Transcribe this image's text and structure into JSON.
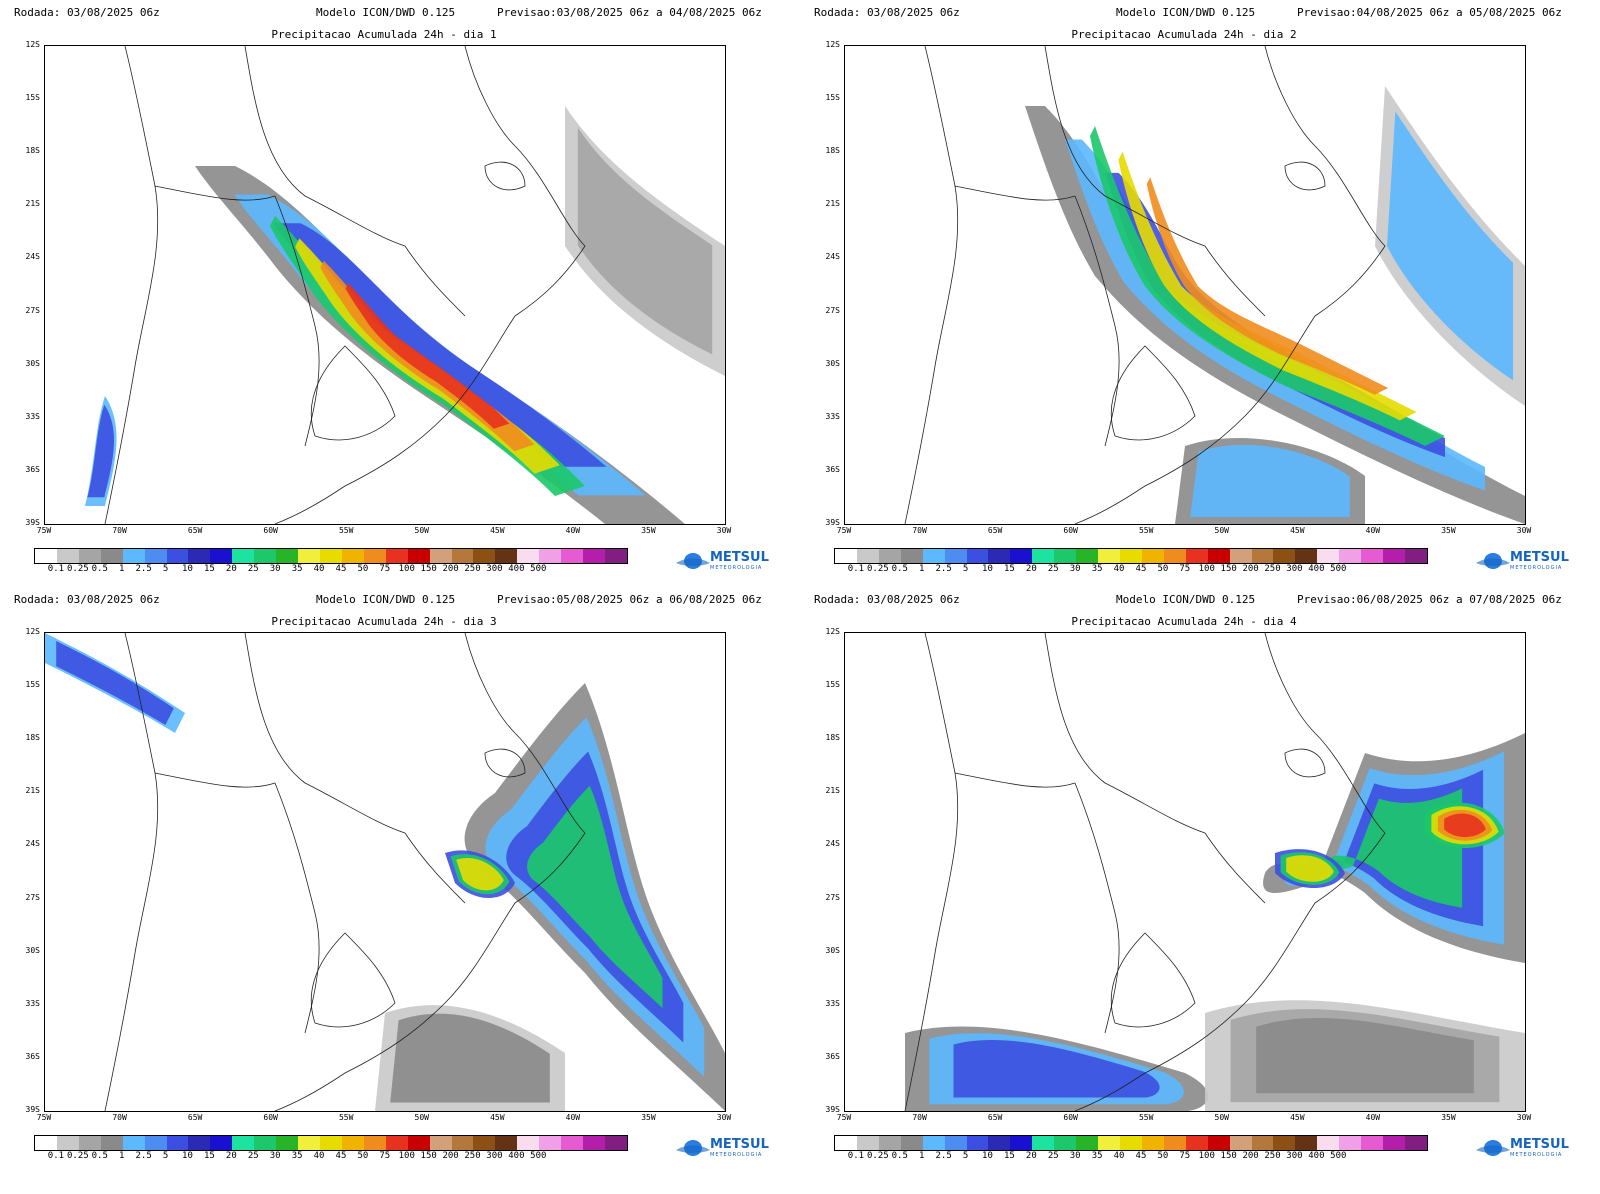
{
  "labels": {
    "rodada_key": "Rodada:",
    "previsao_key": "Previsao:"
  },
  "colors": {
    "scale": [
      "#ffffff",
      "#c9c9c9",
      "#a5a5a5",
      "#8a8a8a",
      "#5cb8ff",
      "#4d8cf0",
      "#3c4fe0",
      "#2a2ab4",
      "#1a10d0",
      "#1de3a0",
      "#1cc86a",
      "#28b428",
      "#f0f03c",
      "#e6dc00",
      "#f0b400",
      "#f08c1e",
      "#e6321e",
      "#c80000",
      "#d2a07a",
      "#b4783c",
      "#8c5014",
      "#643214",
      "#fadcf0",
      "#f0a0e6",
      "#e65ad2",
      "#b41eaa",
      "#821e82"
    ]
  },
  "colorbar_labels": [
    "0.1",
    "0.25",
    "0.5",
    "1",
    "2.5",
    "5",
    "10",
    "15",
    "20",
    "25",
    "30",
    "35",
    "40",
    "45",
    "50",
    "75",
    "100",
    "150",
    "200",
    "250",
    "300",
    "400",
    "500"
  ],
  "lat_ticks": [
    "12S",
    "15S",
    "18S",
    "21S",
    "24S",
    "27S",
    "30S",
    "33S",
    "36S",
    "39S"
  ],
  "lon_ticks": [
    "75W",
    "70W",
    "65W",
    "60W",
    "55W",
    "50W",
    "45W",
    "40W",
    "35W",
    "30W"
  ],
  "logo": {
    "name": "METSUL",
    "sub": "METEOROLOGIA"
  },
  "panels": [
    {
      "rodada": "03/08/2025 06z",
      "modelo": "Modelo ICON/DWD 0.125",
      "previsao": "03/08/2025 06z a 04/08/2025 06z",
      "subtitle": "Precipitacao Acumulada 24h - dia 1"
    },
    {
      "rodada": "03/08/2025 06z",
      "modelo": "Modelo ICON/DWD 0.125",
      "previsao": "04/08/2025 06z a 05/08/2025 06z",
      "subtitle": "Precipitacao Acumulada 24h - dia 2"
    },
    {
      "rodada": "03/08/2025 06z",
      "modelo": "Modelo ICON/DWD 0.125",
      "previsao": "05/08/2025 06z a 06/08/2025 06z",
      "subtitle": "Precipitacao Acumulada 24h - dia 3"
    },
    {
      "rodada": "03/08/2025 06z",
      "modelo": "Modelo ICON/DWD 0.125",
      "previsao": "06/08/2025 06z a 07/08/2025 06z",
      "subtitle": "Precipitacao Acumulada 24h - dia 4"
    }
  ]
}
